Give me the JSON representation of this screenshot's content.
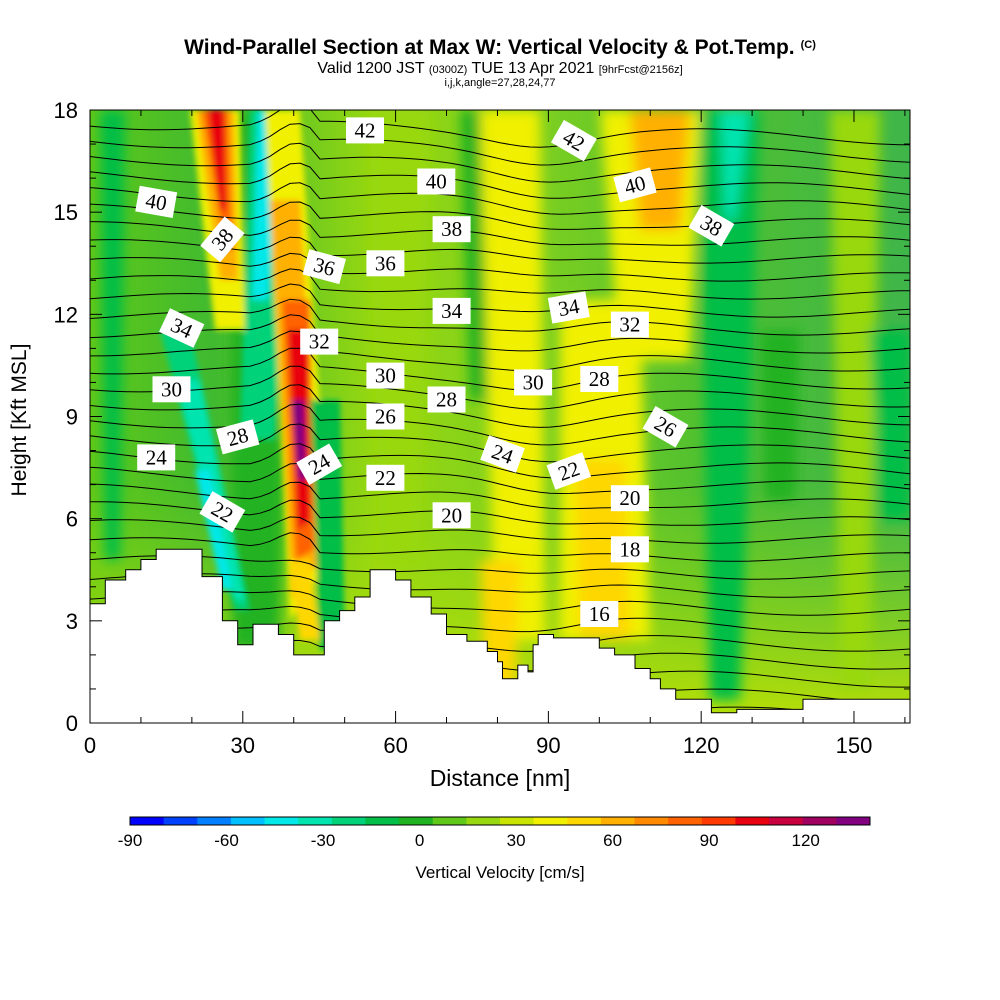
{
  "title": "Wind-Parallel Section at Max W: Vertical Velocity & Pot.Temp.",
  "title_tag": "(C)",
  "subtitle_prefix": "Valid 1200 JST",
  "subtitle_small1": "(0300Z)",
  "subtitle_mid": "TUE 13 Apr 2021",
  "subtitle_small2": "[9hrFcst@2156z]",
  "subtitle2": "i,j,k,angle=27,28,24,77",
  "chart_data": {
    "type": "heatmap",
    "xlabel": "Distance [nm]",
    "ylabel": "Height [Kft MSL]",
    "xlim": [
      0,
      161
    ],
    "ylim": [
      0,
      18
    ],
    "xticks": [
      "0",
      "30",
      "60",
      "90",
      "120",
      "150"
    ],
    "yticks": [
      "0",
      "3",
      "6",
      "9",
      "12",
      "15",
      "18"
    ],
    "colorbar": {
      "label": "Vertical Velocity [cm/s]",
      "ticks": [
        "-90",
        "-60",
        "-30",
        "0",
        "30",
        "60",
        "90",
        "120"
      ],
      "range": [
        -90,
        130
      ],
      "step": 10,
      "colors": [
        "#0000ff",
        "#0040ff",
        "#0080ff",
        "#00bfff",
        "#00e8e8",
        "#00e4b0",
        "#00d27a",
        "#00be46",
        "#20b220",
        "#60c818",
        "#98d810",
        "#c8e400",
        "#f0f000",
        "#ffd700",
        "#ffb000",
        "#ff8a00",
        "#ff6200",
        "#ff3a00",
        "#e80010",
        "#c80040",
        "#a00060",
        "#800080"
      ]
    },
    "vertical_velocity_regions": [
      {
        "x_nm": 27,
        "w_cm_s": 100,
        "note": "narrow updraft"
      },
      {
        "x_nm": 40,
        "w_cm_s": 120,
        "note": "strongest updraft"
      },
      {
        "x_nm": 22,
        "w_cm_s": -60,
        "note": "downdraft"
      },
      {
        "x_nm": 33,
        "w_cm_s": -40,
        "note": "downdraft"
      },
      {
        "x_nm": 82,
        "w_cm_s": 40,
        "note": "updraft"
      },
      {
        "x_nm": 100,
        "w_cm_s": 40,
        "note": "updraft"
      },
      {
        "x_nm": 112,
        "w_cm_s": 50,
        "note": "updraft"
      },
      {
        "x_nm": 125,
        "w_cm_s": -40,
        "note": "downdraft"
      }
    ],
    "pot_temp_contour_labels": [
      {
        "value": "42",
        "x_nm": 54,
        "y_kft": 17.4,
        "angle": 0
      },
      {
        "value": "42",
        "x_nm": 95,
        "y_kft": 17.1,
        "angle": 30
      },
      {
        "value": "40",
        "x_nm": 13,
        "y_kft": 15.3,
        "angle": 10
      },
      {
        "value": "40",
        "x_nm": 68,
        "y_kft": 15.9,
        "angle": 0
      },
      {
        "value": "40",
        "x_nm": 107,
        "y_kft": 15.8,
        "angle": -15
      },
      {
        "value": "38",
        "x_nm": 26,
        "y_kft": 14.2,
        "angle": -50
      },
      {
        "value": "38",
        "x_nm": 71,
        "y_kft": 14.5,
        "angle": 0
      },
      {
        "value": "38",
        "x_nm": 122,
        "y_kft": 14.6,
        "angle": 30
      },
      {
        "value": "36",
        "x_nm": 46,
        "y_kft": 13.4,
        "angle": 15
      },
      {
        "value": "36",
        "x_nm": 58,
        "y_kft": 13.5,
        "angle": 0
      },
      {
        "value": "34",
        "x_nm": 18,
        "y_kft": 11.6,
        "angle": 25
      },
      {
        "value": "34",
        "x_nm": 71,
        "y_kft": 12.1,
        "angle": 0
      },
      {
        "value": "34",
        "x_nm": 94,
        "y_kft": 12.2,
        "angle": -10
      },
      {
        "value": "32",
        "x_nm": 45,
        "y_kft": 11.2,
        "angle": 0
      },
      {
        "value": "32",
        "x_nm": 106,
        "y_kft": 11.7,
        "angle": 0
      },
      {
        "value": "30",
        "x_nm": 16,
        "y_kft": 9.8,
        "angle": 0
      },
      {
        "value": "30",
        "x_nm": 58,
        "y_kft": 10.2,
        "angle": 0
      },
      {
        "value": "30",
        "x_nm": 87,
        "y_kft": 10.0,
        "angle": 0
      },
      {
        "value": "28",
        "x_nm": 29,
        "y_kft": 8.4,
        "angle": -15
      },
      {
        "value": "28",
        "x_nm": 70,
        "y_kft": 9.5,
        "angle": 0
      },
      {
        "value": "28",
        "x_nm": 100,
        "y_kft": 10.1,
        "angle": 0
      },
      {
        "value": "26",
        "x_nm": 58,
        "y_kft": 9.0,
        "angle": 0
      },
      {
        "value": "26",
        "x_nm": 113,
        "y_kft": 8.7,
        "angle": 30
      },
      {
        "value": "24",
        "x_nm": 13,
        "y_kft": 7.8,
        "angle": 0
      },
      {
        "value": "24",
        "x_nm": 45,
        "y_kft": 7.6,
        "angle": -30
      },
      {
        "value": "24",
        "x_nm": 81,
        "y_kft": 7.9,
        "angle": 20
      },
      {
        "value": "22",
        "x_nm": 26,
        "y_kft": 6.2,
        "angle": 30
      },
      {
        "value": "22",
        "x_nm": 58,
        "y_kft": 7.2,
        "angle": 0
      },
      {
        "value": "22",
        "x_nm": 94,
        "y_kft": 7.4,
        "angle": -20
      },
      {
        "value": "20",
        "x_nm": 71,
        "y_kft": 6.1,
        "angle": 0
      },
      {
        "value": "20",
        "x_nm": 106,
        "y_kft": 6.6,
        "angle": 0
      },
      {
        "value": "18",
        "x_nm": 106,
        "y_kft": 5.1,
        "angle": 0
      },
      {
        "value": "16",
        "x_nm": 100,
        "y_kft": 3.2,
        "angle": 0
      }
    ],
    "terrain_kft": [
      [
        0,
        3.5
      ],
      [
        3,
        3.5
      ],
      [
        3,
        4.2
      ],
      [
        7,
        4.2
      ],
      [
        7,
        4.5
      ],
      [
        10,
        4.5
      ],
      [
        10,
        4.8
      ],
      [
        13,
        4.8
      ],
      [
        13,
        5.1
      ],
      [
        22,
        5.1
      ],
      [
        22,
        4.3
      ],
      [
        26,
        4.3
      ],
      [
        26,
        3.0
      ],
      [
        29,
        3.0
      ],
      [
        29,
        2.3
      ],
      [
        32,
        2.3
      ],
      [
        32,
        2.9
      ],
      [
        37,
        2.9
      ],
      [
        37,
        2.6
      ],
      [
        40,
        2.6
      ],
      [
        40,
        2.0
      ],
      [
        46,
        2.0
      ],
      [
        46,
        3.0
      ],
      [
        49,
        3.0
      ],
      [
        49,
        3.3
      ],
      [
        52,
        3.3
      ],
      [
        52,
        3.7
      ],
      [
        55,
        3.7
      ],
      [
        55,
        4.5
      ],
      [
        60,
        4.5
      ],
      [
        60,
        4.2
      ],
      [
        63,
        4.2
      ],
      [
        63,
        3.7
      ],
      [
        67,
        3.7
      ],
      [
        67,
        3.2
      ],
      [
        70,
        3.2
      ],
      [
        70,
        2.6
      ],
      [
        74,
        2.6
      ],
      [
        74,
        2.4
      ],
      [
        78,
        2.4
      ],
      [
        78,
        2.1
      ],
      [
        80,
        2.1
      ],
      [
        80,
        1.8
      ],
      [
        81,
        1.8
      ],
      [
        81,
        1.3
      ],
      [
        84,
        1.3
      ],
      [
        84,
        1.7
      ],
      [
        86,
        1.7
      ],
      [
        86,
        1.5
      ],
      [
        87,
        1.5
      ],
      [
        87,
        2.3
      ],
      [
        88,
        2.3
      ],
      [
        88,
        2.6
      ],
      [
        91,
        2.6
      ],
      [
        91,
        2.5
      ],
      [
        100,
        2.5
      ],
      [
        100,
        2.2
      ],
      [
        103,
        2.2
      ],
      [
        103,
        2.0
      ],
      [
        107,
        2.0
      ],
      [
        107,
        1.6
      ],
      [
        110,
        1.6
      ],
      [
        110,
        1.3
      ],
      [
        112,
        1.3
      ],
      [
        112,
        1.0
      ],
      [
        115,
        1.0
      ],
      [
        115,
        0.7
      ],
      [
        122,
        0.7
      ],
      [
        122,
        0.3
      ],
      [
        127,
        0.3
      ],
      [
        127,
        0.4
      ],
      [
        140,
        0.4
      ],
      [
        140,
        0.7
      ],
      [
        161,
        0.7
      ]
    ]
  }
}
